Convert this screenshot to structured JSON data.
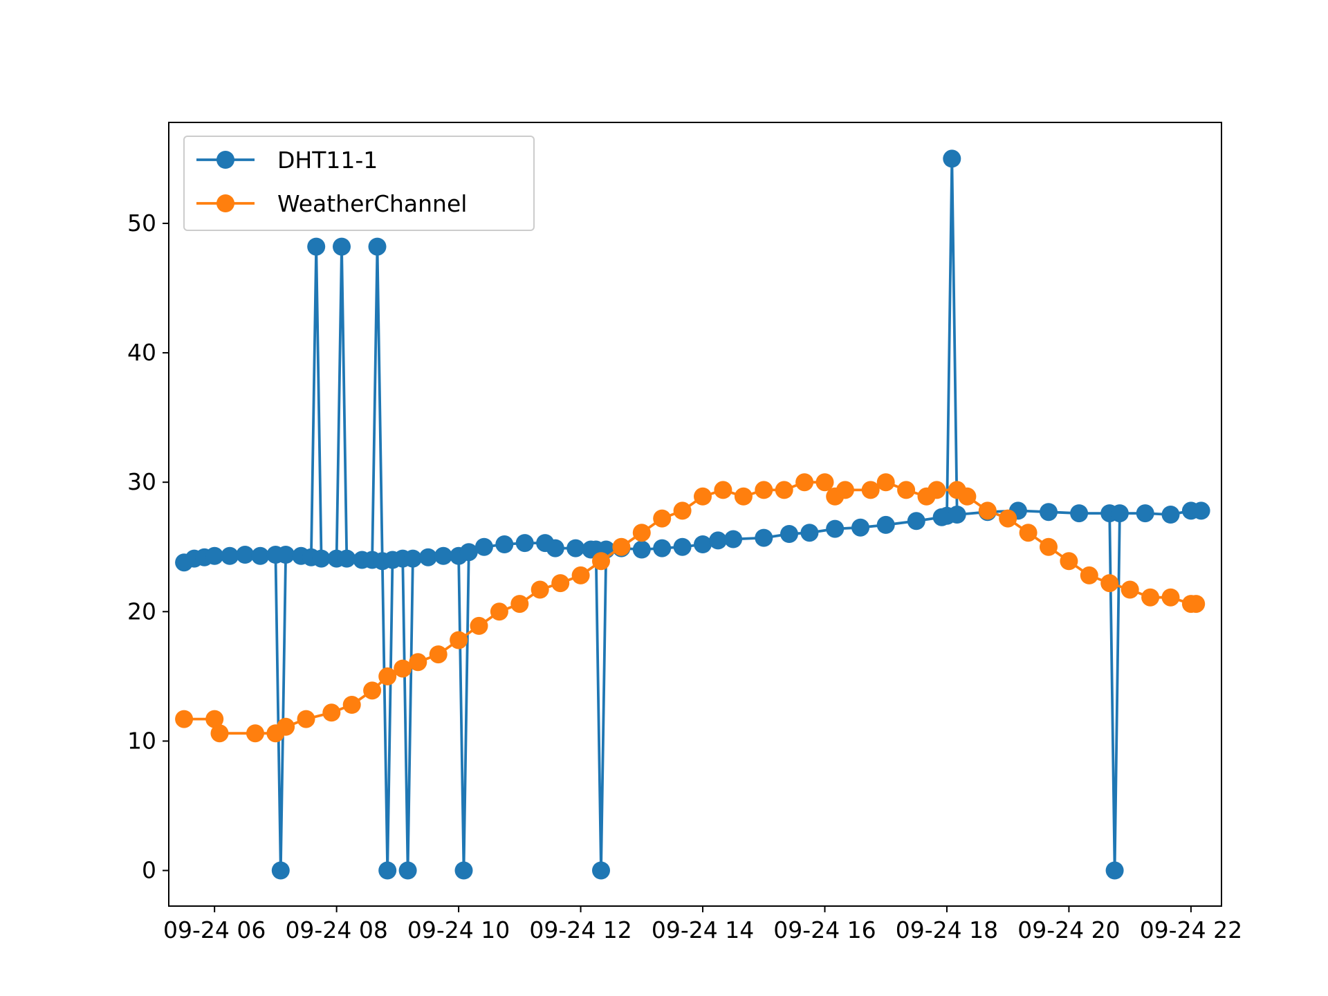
{
  "chart_data": {
    "type": "line",
    "title": "",
    "xlabel": "",
    "ylabel": "",
    "xlim": [
      "2021-09-24 05:15",
      "2021-09-24 22:30"
    ],
    "ylim": [
      -2.75,
      57.8
    ],
    "x_ticks": [
      "2021-09-24 06:00",
      "2021-09-24 08:00",
      "2021-09-24 10:00",
      "2021-09-24 12:00",
      "2021-09-24 14:00",
      "2021-09-24 16:00",
      "2021-09-24 18:00",
      "2021-09-24 20:00",
      "2021-09-24 22:00"
    ],
    "x_tick_labels": [
      "09-24 06",
      "09-24 08",
      "09-24 10",
      "09-24 12",
      "09-24 14",
      "09-24 16",
      "09-24 18",
      "09-24 20",
      "09-24 22"
    ],
    "y_ticks": [
      0,
      10,
      20,
      30,
      40,
      50
    ],
    "y_tick_labels": [
      "0",
      "10",
      "20",
      "30",
      "40",
      "50"
    ],
    "grid": false,
    "legend": {
      "position": "top-left"
    },
    "series": [
      {
        "name": "DHT11-1",
        "color": "#1f77b4",
        "marker": "circle",
        "points": [
          [
            "2021-09-24 05:30",
            23.8
          ],
          [
            "2021-09-24 05:40",
            24.1
          ],
          [
            "2021-09-24 05:50",
            24.2
          ],
          [
            "2021-09-24 06:00",
            24.3
          ],
          [
            "2021-09-24 06:15",
            24.3
          ],
          [
            "2021-09-24 06:30",
            24.4
          ],
          [
            "2021-09-24 06:45",
            24.3
          ],
          [
            "2021-09-24 07:00",
            24.4
          ],
          [
            "2021-09-24 07:05",
            0
          ],
          [
            "2021-09-24 07:10",
            24.4
          ],
          [
            "2021-09-24 07:25",
            24.3
          ],
          [
            "2021-09-24 07:35",
            24.2
          ],
          [
            "2021-09-24 07:40",
            48.2
          ],
          [
            "2021-09-24 07:45",
            24.1
          ],
          [
            "2021-09-24 08:00",
            24.1
          ],
          [
            "2021-09-24 08:05",
            48.2
          ],
          [
            "2021-09-24 08:10",
            24.1
          ],
          [
            "2021-09-24 08:25",
            24.0
          ],
          [
            "2021-09-24 08:35",
            24.0
          ],
          [
            "2021-09-24 08:40",
            48.2
          ],
          [
            "2021-09-24 08:45",
            23.9
          ],
          [
            "2021-09-24 08:50",
            0
          ],
          [
            "2021-09-24 08:55",
            24.0
          ],
          [
            "2021-09-24 09:05",
            24.1
          ],
          [
            "2021-09-24 09:10",
            0
          ],
          [
            "2021-09-24 09:15",
            24.1
          ],
          [
            "2021-09-24 09:30",
            24.2
          ],
          [
            "2021-09-24 09:45",
            24.3
          ],
          [
            "2021-09-24 10:00",
            24.3
          ],
          [
            "2021-09-24 10:05",
            0
          ],
          [
            "2021-09-24 10:10",
            24.6
          ],
          [
            "2021-09-24 10:25",
            25.0
          ],
          [
            "2021-09-24 10:45",
            25.2
          ],
          [
            "2021-09-24 11:05",
            25.3
          ],
          [
            "2021-09-24 11:25",
            25.3
          ],
          [
            "2021-09-24 11:35",
            24.9
          ],
          [
            "2021-09-24 11:55",
            24.9
          ],
          [
            "2021-09-24 12:10",
            24.8
          ],
          [
            "2021-09-24 12:15",
            24.8
          ],
          [
            "2021-09-24 12:20",
            0
          ],
          [
            "2021-09-24 12:25",
            24.8
          ],
          [
            "2021-09-24 12:40",
            24.9
          ],
          [
            "2021-09-24 13:00",
            24.8
          ],
          [
            "2021-09-24 13:20",
            24.9
          ],
          [
            "2021-09-24 13:40",
            25.0
          ],
          [
            "2021-09-24 14:00",
            25.2
          ],
          [
            "2021-09-24 14:15",
            25.5
          ],
          [
            "2021-09-24 14:30",
            25.6
          ],
          [
            "2021-09-24 15:00",
            25.7
          ],
          [
            "2021-09-24 15:25",
            26.0
          ],
          [
            "2021-09-24 15:45",
            26.1
          ],
          [
            "2021-09-24 16:10",
            26.4
          ],
          [
            "2021-09-24 16:35",
            26.5
          ],
          [
            "2021-09-24 17:00",
            26.7
          ],
          [
            "2021-09-24 17:30",
            27.0
          ],
          [
            "2021-09-24 17:55",
            27.3
          ],
          [
            "2021-09-24 18:00",
            27.4
          ],
          [
            "2021-09-24 18:05",
            55.0
          ],
          [
            "2021-09-24 18:10",
            27.5
          ],
          [
            "2021-09-24 18:40",
            27.7
          ],
          [
            "2021-09-24 19:10",
            27.8
          ],
          [
            "2021-09-24 19:40",
            27.7
          ],
          [
            "2021-09-24 20:10",
            27.6
          ],
          [
            "2021-09-24 20:40",
            27.6
          ],
          [
            "2021-09-24 20:45",
            0
          ],
          [
            "2021-09-24 20:50",
            27.6
          ],
          [
            "2021-09-24 21:15",
            27.6
          ],
          [
            "2021-09-24 21:40",
            27.5
          ],
          [
            "2021-09-24 22:00",
            27.8
          ],
          [
            "2021-09-24 22:10",
            27.8
          ]
        ]
      },
      {
        "name": "WeatherChannel",
        "color": "#ff7f0e",
        "marker": "circle",
        "points": [
          [
            "2021-09-24 05:30",
            11.7
          ],
          [
            "2021-09-24 06:00",
            11.7
          ],
          [
            "2021-09-24 06:05",
            10.6
          ],
          [
            "2021-09-24 06:40",
            10.6
          ],
          [
            "2021-09-24 07:00",
            10.6
          ],
          [
            "2021-09-24 07:10",
            11.1
          ],
          [
            "2021-09-24 07:30",
            11.7
          ],
          [
            "2021-09-24 07:55",
            12.2
          ],
          [
            "2021-09-24 08:15",
            12.8
          ],
          [
            "2021-09-24 08:35",
            13.9
          ],
          [
            "2021-09-24 08:50",
            15.0
          ],
          [
            "2021-09-24 09:05",
            15.6
          ],
          [
            "2021-09-24 09:20",
            16.1
          ],
          [
            "2021-09-24 09:40",
            16.7
          ],
          [
            "2021-09-24 10:00",
            17.8
          ],
          [
            "2021-09-24 10:20",
            18.9
          ],
          [
            "2021-09-24 10:40",
            20.0
          ],
          [
            "2021-09-24 11:00",
            20.6
          ],
          [
            "2021-09-24 11:20",
            21.7
          ],
          [
            "2021-09-24 11:40",
            22.2
          ],
          [
            "2021-09-24 12:00",
            22.8
          ],
          [
            "2021-09-24 12:20",
            23.9
          ],
          [
            "2021-09-24 12:40",
            25.0
          ],
          [
            "2021-09-24 13:00",
            26.1
          ],
          [
            "2021-09-24 13:20",
            27.2
          ],
          [
            "2021-09-24 13:40",
            27.8
          ],
          [
            "2021-09-24 14:00",
            28.9
          ],
          [
            "2021-09-24 14:20",
            29.4
          ],
          [
            "2021-09-24 14:40",
            28.9
          ],
          [
            "2021-09-24 15:00",
            29.4
          ],
          [
            "2021-09-24 15:20",
            29.4
          ],
          [
            "2021-09-24 15:40",
            30.0
          ],
          [
            "2021-09-24 16:00",
            30.0
          ],
          [
            "2021-09-24 16:10",
            28.9
          ],
          [
            "2021-09-24 16:20",
            29.4
          ],
          [
            "2021-09-24 16:45",
            29.4
          ],
          [
            "2021-09-24 17:00",
            30.0
          ],
          [
            "2021-09-24 17:20",
            29.4
          ],
          [
            "2021-09-24 17:40",
            28.9
          ],
          [
            "2021-09-24 17:50",
            29.4
          ],
          [
            "2021-09-24 18:10",
            29.4
          ],
          [
            "2021-09-24 18:20",
            28.9
          ],
          [
            "2021-09-24 18:40",
            27.8
          ],
          [
            "2021-09-24 19:00",
            27.2
          ],
          [
            "2021-09-24 19:20",
            26.1
          ],
          [
            "2021-09-24 19:40",
            25.0
          ],
          [
            "2021-09-24 20:00",
            23.9
          ],
          [
            "2021-09-24 20:20",
            22.8
          ],
          [
            "2021-09-24 20:40",
            22.2
          ],
          [
            "2021-09-24 21:00",
            21.7
          ],
          [
            "2021-09-24 21:20",
            21.1
          ],
          [
            "2021-09-24 21:40",
            21.1
          ],
          [
            "2021-09-24 22:00",
            20.6
          ],
          [
            "2021-09-24 22:05",
            20.6
          ]
        ]
      }
    ]
  }
}
